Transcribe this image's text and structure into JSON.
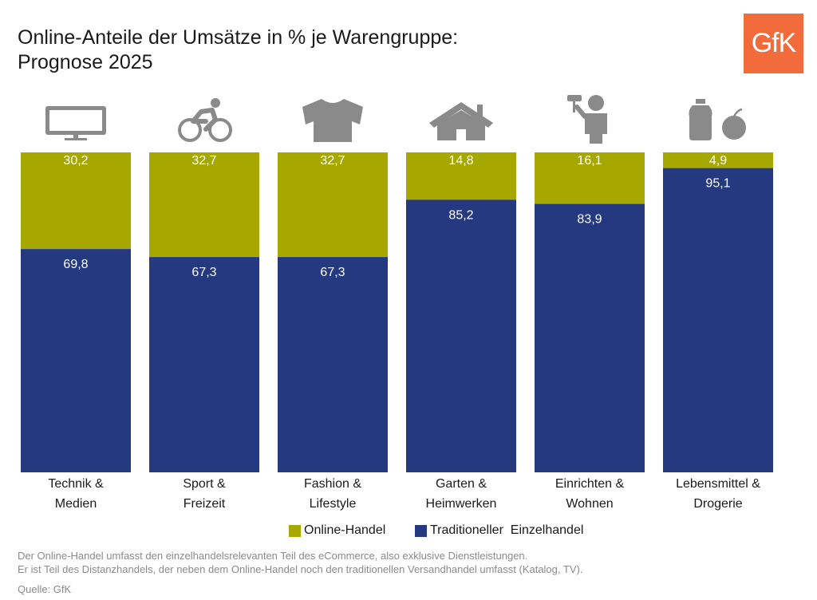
{
  "title": {
    "line1": "Online-Anteile der Umsätze in % je Warengruppe:",
    "line2": "Prognose 2025"
  },
  "logo": {
    "text": "GfK",
    "color": "#f26b3a"
  },
  "colors": {
    "online": "#a6a800",
    "traditional": "#24397f",
    "icon": "#8a8a8a"
  },
  "icons": [
    "tv-icon",
    "cyclist-icon",
    "shirt-icon",
    "house-icon",
    "painter-icon",
    "groceries-icon"
  ],
  "chart_data": {
    "type": "bar",
    "stacked": true,
    "normalized_percent": true,
    "categories": [
      [
        "Technik &",
        "Medien"
      ],
      [
        "Sport &",
        "Freizeit"
      ],
      [
        "Fashion &",
        "Lifestyle"
      ],
      [
        "Garten &",
        "Heimwerken"
      ],
      [
        "Einrichten &",
        "Wohnen"
      ],
      [
        "Lebensmittel &",
        "Drogerie"
      ]
    ],
    "series": [
      {
        "name": "Online-Handel",
        "values": [
          30.2,
          32.7,
          32.7,
          14.8,
          16.1,
          4.9
        ],
        "labels": [
          "30,2",
          "32,7",
          "32,7",
          "14,8",
          "16,1",
          "4,9"
        ],
        "color": "#a6a800"
      },
      {
        "name": "Traditioneller  Einzelhandel",
        "values": [
          69.8,
          67.3,
          67.3,
          85.2,
          83.9,
          95.1
        ],
        "labels": [
          "69,8",
          "67,3",
          "67,3",
          "85,2",
          "83,9",
          "95,1"
        ],
        "color": "#24397f"
      }
    ],
    "ylim": [
      0,
      100
    ],
    "legend_position": "bottom"
  },
  "footnote": {
    "line1": "Der Online-Handel umfasst den einzelhandelsrelevanten Teil des eCommerce, also exklusive Dienstleistungen.",
    "line2": "Er ist Teil des Distanzhandels, der neben dem Online-Handel noch den traditionellen Versandhandel umfasst (Katalog, TV)."
  },
  "source": "Quelle: GfK"
}
